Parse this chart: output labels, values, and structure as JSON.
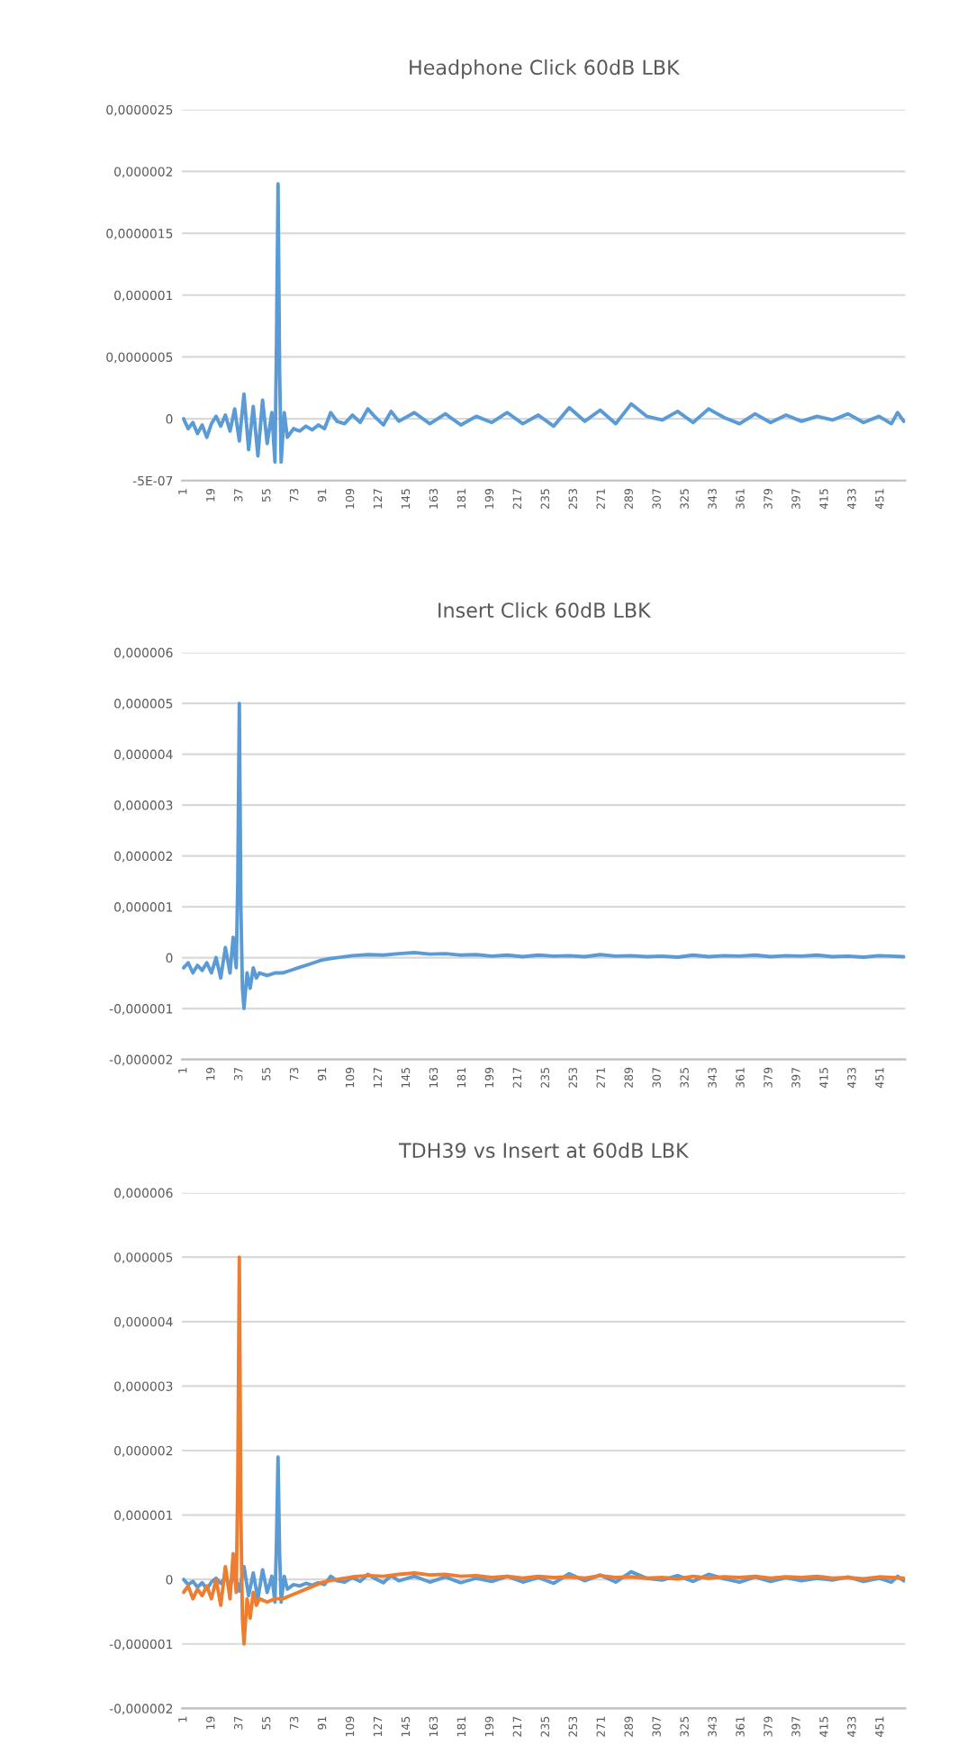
{
  "chart_data": [
    {
      "type": "line",
      "title": "Headphone Click 60dB LBK",
      "grid": "y",
      "xlim": [
        0,
        467
      ],
      "xticks": [
        1,
        19,
        37,
        55,
        73,
        91,
        109,
        127,
        145,
        163,
        181,
        199,
        217,
        235,
        253,
        271,
        289,
        307,
        325,
        343,
        361,
        379,
        397,
        415,
        433,
        451
      ],
      "ylim": [
        -5e-07,
        2.5e-06
      ],
      "yticks": [
        {
          "value": -5e-07,
          "label": "-5E-07"
        },
        {
          "value": 0,
          "label": "0"
        },
        {
          "value": 5e-07,
          "label": "0,0000005"
        },
        {
          "value": 1e-06,
          "label": "0,000001"
        },
        {
          "value": 1.5e-06,
          "label": "0,0000015"
        },
        {
          "value": 2e-06,
          "label": "0,000002"
        },
        {
          "value": 2.5e-06,
          "label": "0,0000025"
        }
      ],
      "series": [
        {
          "color": "#5b9bd5",
          "x": [
            1,
            4,
            7,
            10,
            13,
            16,
            19,
            22,
            25,
            28,
            31,
            34,
            37,
            40,
            43,
            46,
            49,
            52,
            55,
            58,
            60,
            61,
            62,
            63,
            64,
            66,
            68,
            72,
            76,
            80,
            84,
            88,
            92,
            96,
            100,
            105,
            110,
            115,
            120,
            125,
            130,
            135,
            140,
            150,
            160,
            170,
            180,
            190,
            200,
            210,
            220,
            230,
            240,
            250,
            260,
            270,
            280,
            290,
            300,
            310,
            320,
            330,
            340,
            350,
            360,
            370,
            380,
            390,
            400,
            410,
            420,
            430,
            440,
            450,
            458,
            462,
            466
          ],
          "values": [
            0,
            -8e-08,
            -3e-08,
            -1.2e-07,
            -5e-08,
            -1.5e-07,
            -4e-08,
            2e-08,
            -6e-08,
            3e-08,
            -1e-07,
            8e-08,
            -1.8e-07,
            2e-07,
            -2.5e-07,
            1e-07,
            -3e-07,
            1.5e-07,
            -2e-07,
            5e-08,
            -3.5e-07,
            6e-07,
            1.9e-06,
            4e-07,
            -3.5e-07,
            5e-08,
            -1.5e-07,
            -8e-08,
            -1e-07,
            -6e-08,
            -9e-08,
            -5e-08,
            -8e-08,
            5e-08,
            -2e-08,
            -4e-08,
            3e-08,
            -3e-08,
            8e-08,
            1e-08,
            -5e-08,
            6e-08,
            -2e-08,
            5e-08,
            -4e-08,
            4e-08,
            -5e-08,
            2e-08,
            -3e-08,
            5e-08,
            -4e-08,
            3e-08,
            -6e-08,
            9e-08,
            -2e-08,
            7e-08,
            -4e-08,
            1.2e-07,
            2e-08,
            -1e-08,
            6e-08,
            -3e-08,
            8e-08,
            1e-08,
            -4e-08,
            4e-08,
            -3e-08,
            3e-08,
            -2e-08,
            2e-08,
            -1e-08,
            4e-08,
            -3e-08,
            2e-08,
            -4e-08,
            5e-08,
            -2e-08
          ]
        }
      ]
    },
    {
      "type": "line",
      "title": "Insert Click 60dB LBK",
      "grid": "y",
      "xlim": [
        0,
        467
      ],
      "xticks": [
        1,
        19,
        37,
        55,
        73,
        91,
        109,
        127,
        145,
        163,
        181,
        199,
        217,
        235,
        253,
        271,
        289,
        307,
        325,
        343,
        361,
        379,
        397,
        415,
        433,
        451
      ],
      "ylim": [
        -2e-06,
        6e-06
      ],
      "yticks": [
        {
          "value": -2e-06,
          "label": "-0,000002"
        },
        {
          "value": -1e-06,
          "label": "-0,000001"
        },
        {
          "value": 0,
          "label": "0"
        },
        {
          "value": 1e-06,
          "label": "0,000001"
        },
        {
          "value": 2e-06,
          "label": "0,000002"
        },
        {
          "value": 3e-06,
          "label": "0,000003"
        },
        {
          "value": 4e-06,
          "label": "0,000004"
        },
        {
          "value": 5e-06,
          "label": "0,000005"
        },
        {
          "value": 6e-06,
          "label": "0,000006"
        }
      ],
      "series": [
        {
          "color": "#5b9bd5",
          "x": [
            1,
            4,
            7,
            10,
            13,
            16,
            19,
            22,
            25,
            28,
            31,
            33,
            35,
            36,
            37,
            38,
            39,
            40,
            42,
            44,
            46,
            48,
            50,
            55,
            60,
            65,
            70,
            75,
            80,
            85,
            90,
            95,
            100,
            110,
            120,
            130,
            140,
            150,
            160,
            170,
            180,
            190,
            200,
            210,
            220,
            230,
            240,
            250,
            260,
            270,
            280,
            290,
            300,
            310,
            320,
            330,
            340,
            350,
            360,
            370,
            380,
            390,
            400,
            410,
            420,
            430,
            440,
            450,
            458,
            466
          ],
          "values": [
            -2e-07,
            -1e-07,
            -3e-07,
            -1.5e-07,
            -2.5e-07,
            -1e-07,
            -3e-07,
            0,
            -4e-07,
            2e-07,
            -3e-07,
            4e-07,
            -2e-07,
            1.5e-06,
            5e-06,
            1e-06,
            -6e-07,
            -1e-06,
            -3e-07,
            -6e-07,
            -2e-07,
            -4e-07,
            -3e-07,
            -3.5e-07,
            -3e-07,
            -3e-07,
            -2.5e-07,
            -2e-07,
            -1.5e-07,
            -1e-07,
            -5e-08,
            -2e-08,
            0,
            4e-08,
            6e-08,
            5e-08,
            8e-08,
            1e-07,
            7e-08,
            8e-08,
            5e-08,
            6e-08,
            3e-08,
            5e-08,
            2e-08,
            5e-08,
            3e-08,
            4e-08,
            2e-08,
            6e-08,
            3e-08,
            4e-08,
            2e-08,
            3e-08,
            1e-08,
            5e-08,
            2e-08,
            4e-08,
            3e-08,
            5e-08,
            2e-08,
            4e-08,
            3e-08,
            5e-08,
            2e-08,
            3e-08,
            1e-08,
            4e-08,
            3e-08,
            2e-08
          ]
        }
      ]
    },
    {
      "type": "line",
      "title": "TDH39 vs Insert at 60dB LBK",
      "grid": "y",
      "xlim": [
        0,
        467
      ],
      "xticks": [
        1,
        19,
        37,
        55,
        73,
        91,
        109,
        127,
        145,
        163,
        181,
        199,
        217,
        235,
        253,
        271,
        289,
        307,
        325,
        343,
        361,
        379,
        397,
        415,
        433,
        451
      ],
      "ylim": [
        -2e-06,
        6e-06
      ],
      "yticks": [
        {
          "value": -2e-06,
          "label": "-0,000002"
        },
        {
          "value": -1e-06,
          "label": "-0,000001"
        },
        {
          "value": 0,
          "label": "0"
        },
        {
          "value": 1e-06,
          "label": "0,000001"
        },
        {
          "value": 2e-06,
          "label": "0,000002"
        },
        {
          "value": 3e-06,
          "label": "0,000003"
        },
        {
          "value": 4e-06,
          "label": "0,000004"
        },
        {
          "value": 5e-06,
          "label": "0,000005"
        },
        {
          "value": 6e-06,
          "label": "0,000006"
        }
      ],
      "series": [
        {
          "color": "#5b9bd5",
          "x": [
            1,
            4,
            7,
            10,
            13,
            16,
            19,
            22,
            25,
            28,
            31,
            34,
            37,
            40,
            43,
            46,
            49,
            52,
            55,
            58,
            60,
            61,
            62,
            63,
            64,
            66,
            68,
            72,
            76,
            80,
            84,
            88,
            92,
            96,
            100,
            105,
            110,
            115,
            120,
            125,
            130,
            135,
            140,
            150,
            160,
            170,
            180,
            190,
            200,
            210,
            220,
            230,
            240,
            250,
            260,
            270,
            280,
            290,
            300,
            310,
            320,
            330,
            340,
            350,
            360,
            370,
            380,
            390,
            400,
            410,
            420,
            430,
            440,
            450,
            458,
            462,
            466
          ],
          "values": [
            0,
            -8e-08,
            -3e-08,
            -1.2e-07,
            -5e-08,
            -1.5e-07,
            -4e-08,
            2e-08,
            -6e-08,
            3e-08,
            -1e-07,
            8e-08,
            -1.8e-07,
            2e-07,
            -2.5e-07,
            1e-07,
            -3e-07,
            1.5e-07,
            -2e-07,
            5e-08,
            -3.5e-07,
            6e-07,
            1.9e-06,
            4e-07,
            -3.5e-07,
            5e-08,
            -1.5e-07,
            -8e-08,
            -1e-07,
            -6e-08,
            -9e-08,
            -5e-08,
            -8e-08,
            5e-08,
            -2e-08,
            -4e-08,
            3e-08,
            -3e-08,
            8e-08,
            1e-08,
            -5e-08,
            6e-08,
            -2e-08,
            5e-08,
            -4e-08,
            4e-08,
            -5e-08,
            2e-08,
            -3e-08,
            5e-08,
            -4e-08,
            3e-08,
            -6e-08,
            9e-08,
            -2e-08,
            7e-08,
            -4e-08,
            1.2e-07,
            2e-08,
            -1e-08,
            6e-08,
            -3e-08,
            8e-08,
            1e-08,
            -4e-08,
            4e-08,
            -3e-08,
            3e-08,
            -2e-08,
            2e-08,
            -1e-08,
            4e-08,
            -3e-08,
            2e-08,
            -4e-08,
            5e-08,
            -2e-08
          ]
        },
        {
          "color": "#ed7d31",
          "x": [
            1,
            4,
            7,
            10,
            13,
            16,
            19,
            22,
            25,
            28,
            31,
            33,
            35,
            36,
            37,
            38,
            39,
            40,
            42,
            44,
            46,
            48,
            50,
            55,
            60,
            65,
            70,
            75,
            80,
            85,
            90,
            95,
            100,
            110,
            120,
            130,
            140,
            150,
            160,
            170,
            180,
            190,
            200,
            210,
            220,
            230,
            240,
            250,
            260,
            270,
            280,
            290,
            300,
            310,
            320,
            330,
            340,
            350,
            360,
            370,
            380,
            390,
            400,
            410,
            420,
            430,
            440,
            450,
            458,
            466
          ],
          "values": [
            -2e-07,
            -1e-07,
            -3e-07,
            -1.5e-07,
            -2.5e-07,
            -1e-07,
            -3e-07,
            0,
            -4e-07,
            2e-07,
            -3e-07,
            4e-07,
            -2e-07,
            1.5e-06,
            5e-06,
            1e-06,
            -6e-07,
            -1e-06,
            -3e-07,
            -6e-07,
            -2e-07,
            -4e-07,
            -3e-07,
            -3.5e-07,
            -3e-07,
            -3e-07,
            -2.5e-07,
            -2e-07,
            -1.5e-07,
            -1e-07,
            -5e-08,
            -2e-08,
            0,
            4e-08,
            6e-08,
            5e-08,
            8e-08,
            1e-07,
            7e-08,
            8e-08,
            5e-08,
            6e-08,
            3e-08,
            5e-08,
            2e-08,
            5e-08,
            3e-08,
            4e-08,
            2e-08,
            6e-08,
            3e-08,
            4e-08,
            2e-08,
            3e-08,
            1e-08,
            5e-08,
            2e-08,
            4e-08,
            3e-08,
            5e-08,
            2e-08,
            4e-08,
            3e-08,
            5e-08,
            2e-08,
            3e-08,
            1e-08,
            4e-08,
            3e-08,
            2e-08
          ]
        }
      ]
    }
  ]
}
